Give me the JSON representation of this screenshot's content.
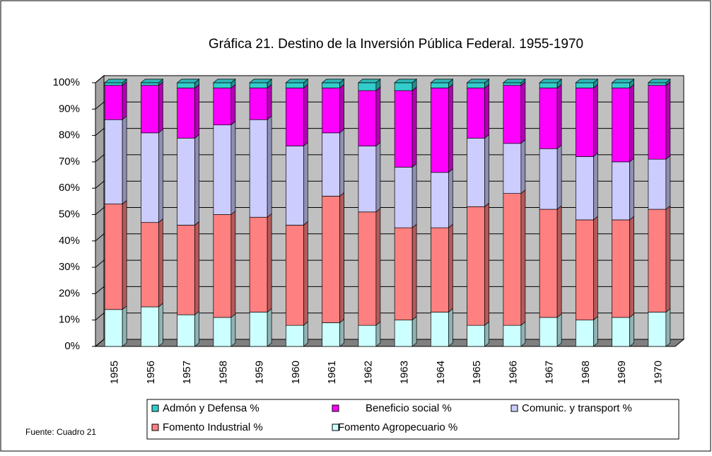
{
  "chart_data": {
    "type": "bar",
    "title": "Gráfica 21.  Destino de la Inversión Pública Federal. 1955-1970",
    "source": "Fuente: Cuadro 21",
    "stacked": true,
    "categories": [
      "1955",
      "1956",
      "1957",
      "1958",
      "1959",
      "1960",
      "1961",
      "1962",
      "1963",
      "1964",
      "1965",
      "1966",
      "1967",
      "1968",
      "1969",
      "1970"
    ],
    "series": [
      {
        "name": "Fomento Agropecuario %",
        "color": "#ccffff",
        "values": [
          14,
          15,
          12,
          11,
          13,
          8,
          9,
          8,
          10,
          13,
          8,
          8,
          11,
          10,
          11,
          13
        ]
      },
      {
        "name": "Fomento Industrial %",
        "color": "#ff8080",
        "values": [
          40,
          32,
          34,
          39,
          36,
          38,
          48,
          43,
          35,
          32,
          45,
          50,
          41,
          38,
          37,
          39
        ]
      },
      {
        "name": "Comunic. y transport %",
        "color": "#ccccff",
        "values": [
          32,
          34,
          33,
          34,
          37,
          30,
          24,
          25,
          23,
          21,
          26,
          19,
          23,
          24,
          22,
          19
        ]
      },
      {
        "name": "Beneficio social %",
        "color": "#ff00ff",
        "values": [
          13,
          18,
          19,
          14,
          12,
          22,
          17,
          21,
          29,
          32,
          19,
          22,
          23,
          26,
          28,
          28
        ]
      },
      {
        "name": "Admón y Defensa %",
        "color": "#33cccc",
        "values": [
          1,
          1,
          2,
          2,
          2,
          2,
          2,
          3,
          3,
          2,
          2,
          1,
          2,
          2,
          2,
          1
        ]
      }
    ],
    "ylim": [
      0,
      100
    ],
    "yticks": [
      {
        "value": 0,
        "label": "0%"
      },
      {
        "value": 10,
        "label": "10%"
      },
      {
        "value": 20,
        "label": "20%"
      },
      {
        "value": 30,
        "label": "30%"
      },
      {
        "value": 40,
        "label": "40%"
      },
      {
        "value": 50,
        "label": "50%"
      },
      {
        "value": 60,
        "label": "60%"
      },
      {
        "value": 70,
        "label": "70%"
      },
      {
        "value": 80,
        "label": "80%"
      },
      {
        "value": 90,
        "label": "90%"
      },
      {
        "value": 100,
        "label": "100%"
      }
    ],
    "grid": true,
    "wall_color": "#c0c0c0"
  }
}
